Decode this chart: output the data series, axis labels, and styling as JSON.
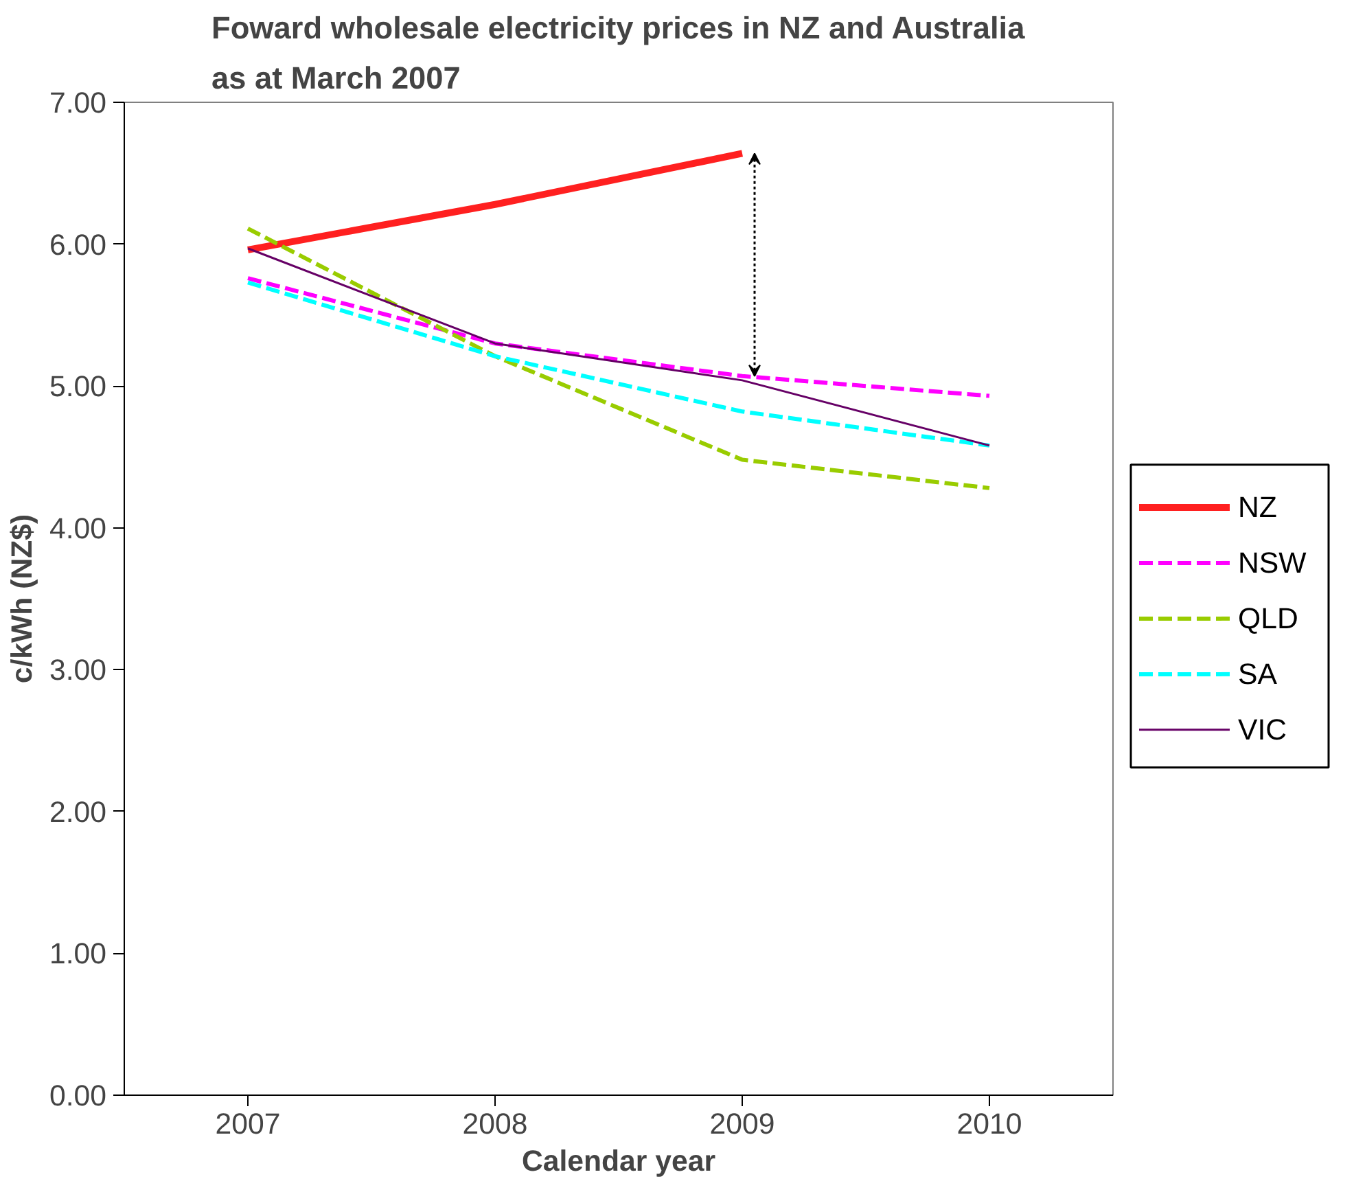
{
  "chart_data": {
    "type": "line",
    "title": "Foward wholesale electricity prices in NZ and Australia\nas at March 2007",
    "xlabel": "Calendar year",
    "ylabel": "c/kWh (NZ$)",
    "categories": [
      "2007",
      "2008",
      "2009",
      "2010"
    ],
    "series": [
      {
        "name": "NZ",
        "color": "#ff2020",
        "line_style": "solid",
        "values": [
          5.96,
          6.28,
          6.64,
          null
        ]
      },
      {
        "name": "NSW",
        "color": "#ff00ff",
        "line_style": "dashed",
        "values": [
          5.76,
          5.3,
          5.07,
          4.93
        ]
      },
      {
        "name": "QLD",
        "color": "#99cc00",
        "line_style": "dashed",
        "values": [
          6.11,
          5.21,
          4.48,
          4.28
        ]
      },
      {
        "name": "SA",
        "color": "#00ffff",
        "line_style": "dashed",
        "values": [
          5.73,
          5.21,
          4.82,
          4.58
        ]
      },
      {
        "name": "VIC",
        "color": "#660066",
        "line_style": "solid",
        "values": [
          5.97,
          5.3,
          5.04,
          4.58
        ]
      }
    ],
    "ylim": [
      0,
      7
    ],
    "yticks": [
      {
        "value": 0,
        "label": "0.00"
      },
      {
        "value": 1,
        "label": "1.00"
      },
      {
        "value": 2,
        "label": "2.00"
      },
      {
        "value": 3,
        "label": "3.00"
      },
      {
        "value": 4,
        "label": "4.00"
      },
      {
        "value": 5,
        "label": "5.00"
      },
      {
        "value": 6,
        "label": "6.00"
      },
      {
        "value": 7,
        "label": "7.00"
      }
    ],
    "grid": false,
    "legend": "right",
    "marker": "none"
  }
}
